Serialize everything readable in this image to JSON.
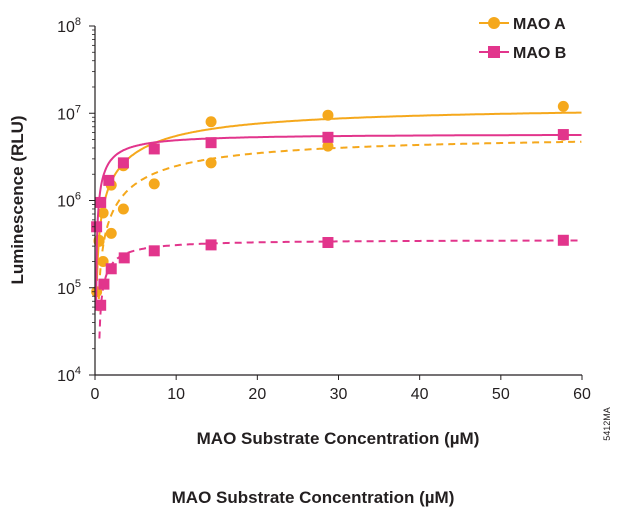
{
  "chart_data": {
    "type": "line",
    "xlabel": "MAO Substrate Concentration (µM)",
    "ylabel": "Luminescence (RLU)",
    "xlim": [
      0,
      60
    ],
    "ylim": [
      10000,
      100000000
    ],
    "yscale": "log",
    "x_ticks": [
      "0",
      "10",
      "20",
      "30",
      "40",
      "50",
      "60"
    ],
    "y_ticks": [
      {
        "value": 10000,
        "base": "10",
        "exp": "4"
      },
      {
        "value": 100000,
        "base": "10",
        "exp": "5"
      },
      {
        "value": 1000000,
        "base": "10",
        "exp": "6"
      },
      {
        "value": 10000000,
        "base": "10",
        "exp": "7"
      },
      {
        "value": 100000000,
        "base": "10",
        "exp": "8"
      }
    ],
    "grid": false,
    "legend_position": "top-right",
    "legend": [
      {
        "name": "MAO A",
        "color": "#f5a81c",
        "marker": "circle"
      },
      {
        "name": "MAO B",
        "color": "#e2358c",
        "marker": "square"
      }
    ],
    "series": [
      {
        "name": "MAO A",
        "color": "#f5a81c",
        "marker": "circle",
        "line": "solid",
        "x": [
          0.2,
          0.5,
          1.0,
          2.0,
          3.5,
          14.3,
          28.7,
          57.7
        ],
        "y": [
          90000,
          340000,
          720000,
          1500000,
          2500000,
          8000000,
          9500000,
          12000000
        ]
      },
      {
        "color": "#f5a81c",
        "marker": "circle",
        "line": "dashed",
        "x": [
          0.5,
          1.0,
          2.0,
          3.5,
          7.3,
          14.3,
          28.7,
          57.7
        ],
        "y": [
          350000,
          200000,
          420000,
          800000,
          1550000,
          2700000,
          4200000,
          5600000
        ]
      },
      {
        "name": "MAO B",
        "color": "#e2358c",
        "marker": "square",
        "line": "solid",
        "x": [
          0.2,
          0.7,
          1.7,
          3.5,
          7.3,
          14.3,
          28.7,
          57.7
        ],
        "y": [
          500000,
          950000,
          1700000,
          2700000,
          3900000,
          4600000,
          5300000,
          5700000
        ]
      },
      {
        "color": "#e2358c",
        "marker": "square",
        "line": "dashed",
        "x": [
          0.7,
          1.1,
          2.0,
          3.6,
          7.3,
          14.3,
          28.7,
          57.7
        ],
        "y": [
          63000,
          110000,
          165000,
          220000,
          265000,
          310000,
          330000,
          350000
        ]
      }
    ],
    "annotations": [
      "5412MA"
    ]
  },
  "caption": "MAO Substrate Concentration (µM)"
}
